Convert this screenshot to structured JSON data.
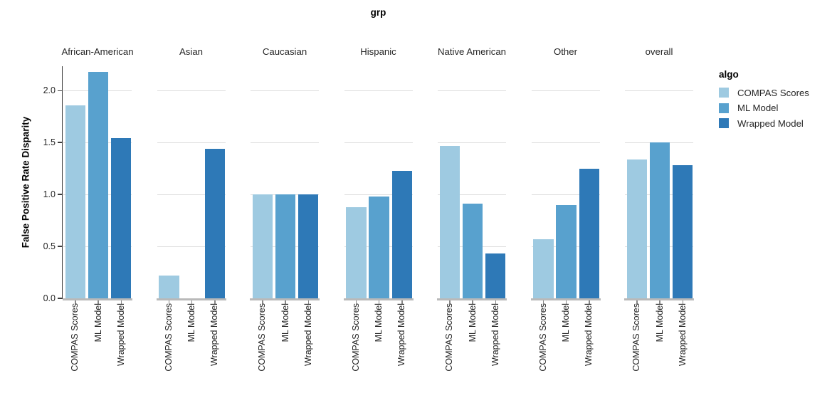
{
  "title": "grp",
  "legend": {
    "title": "algo"
  },
  "chart_data": {
    "type": "bar",
    "facet_field_title": "grp",
    "facets": [
      "African-American",
      "Asian",
      "Caucasian",
      "Hispanic",
      "Native American",
      "Other",
      "overall"
    ],
    "series": [
      {
        "name": "COMPAS Scores",
        "color": "#9ecae1",
        "values": [
          1.86,
          0.22,
          1.0,
          0.88,
          1.47,
          0.57,
          1.34
        ]
      },
      {
        "name": "ML Model",
        "color": "#58a1ce",
        "values": [
          2.18,
          0.0,
          1.0,
          0.98,
          0.91,
          0.9,
          1.5
        ]
      },
      {
        "name": "Wrapped Model",
        "color": "#2e79b7",
        "values": [
          1.54,
          1.44,
          1.0,
          1.23,
          0.43,
          1.25,
          1.28
        ]
      }
    ],
    "xlabel": "",
    "ylabel": "False Positive Rate Disparity",
    "y_ticks": [
      "0.0",
      "0.5",
      "1.0",
      "1.5",
      "2.0"
    ],
    "y_tick_values": [
      0.0,
      0.5,
      1.0,
      1.5,
      2.0
    ],
    "ylim": [
      0,
      2.235
    ],
    "grid": true,
    "legend_position": "right",
    "colors": {
      "gridline": "#dddddd",
      "x_domain": "#b9b9b9",
      "x_tick": "#888888",
      "y_axis": "#3c3c3c"
    }
  }
}
